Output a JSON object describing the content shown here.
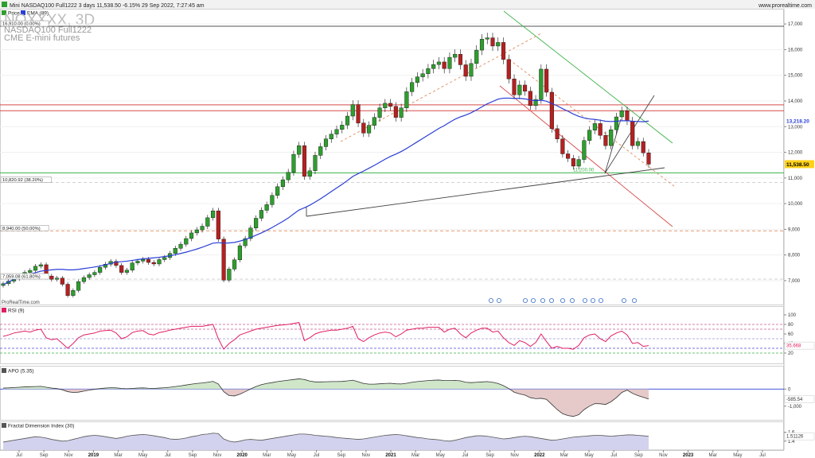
{
  "header": {
    "title": "Mini NASDAQ100 Full1222 3 days 11,538.50 -6.15% 29 Sep 2022, 7:27:45 am",
    "brand": "www.prorealtime.com"
  },
  "legend": {
    "price": "Price",
    "ema": "EMA (89)"
  },
  "watermark": {
    "symbol": "NQXXXX, 3D",
    "name": "NASDAQ100 Full1222",
    "exchange": "CME E-mini futures"
  },
  "copyright": "ProRealTime.com",
  "panels": {
    "rsi": "RSI (9)",
    "apo": "APO (5.35)",
    "fdi": "Fractal Dimension Index (30)"
  },
  "colors": {
    "candle_up": "#2e9e2e",
    "candle_down": "#b52020",
    "ema": "#2a3fd6",
    "rsi": "#e01e63",
    "fdi": "#8a8ad6"
  },
  "chart_data": [
    {
      "type": "candlestick",
      "timeframe": "3 days",
      "last_price_label": "11,538.50",
      "ema_label": "13,218.20",
      "support_label": "11,200.00",
      "ylim": [
        6100,
        17500
      ],
      "y_ticks": [
        "7,000",
        "8,000",
        "9,000",
        "10,000",
        "11,000",
        "12,000",
        "13,000",
        "14,000",
        "15,000",
        "16,000",
        "17,000"
      ],
      "x_ticks": [
        "Jul",
        "Sep",
        "Nov",
        "2019",
        "Mar",
        "May",
        "Jul",
        "Sep",
        "Nov",
        "2020",
        "Mar",
        "May",
        "Jul",
        "Sep",
        "Nov",
        "2021",
        "Mar",
        "May",
        "Jul",
        "Sep",
        "Nov",
        "2022",
        "Mar",
        "May",
        "Jul",
        "Sep",
        "Nov",
        "2023",
        "Mar",
        "May",
        "Jul"
      ],
      "fib_levels": [
        {
          "label": "16,910.00 (0.00%)",
          "value": 16910
        },
        {
          "label": "10,820.92 (38.20%)",
          "value": 10820.92
        },
        {
          "label": "8,940.00 (50.00%)",
          "value": 8940
        },
        {
          "label": "7,059.08 (61.80%)",
          "value": 7059.08
        }
      ],
      "horizontal_levels": [
        13850,
        13620,
        11200
      ],
      "series": [
        {
          "name": "Price",
          "values": [
            6880,
            6980,
            7080,
            7150,
            7320,
            7400,
            7560,
            7620,
            7180,
            7050,
            7100,
            6860,
            6420,
            6620,
            6960,
            7120,
            7230,
            7320,
            7520,
            7640,
            7750,
            7590,
            7320,
            7410,
            7690,
            7760,
            7830,
            7710,
            7650,
            7820,
            7900,
            8060,
            8260,
            8420,
            8640,
            8860,
            8980,
            9120,
            9450,
            9720,
            8620,
            7020,
            7450,
            7810,
            8360,
            8640,
            9050,
            9430,
            9740,
            9960,
            10320,
            10660,
            10930,
            11220,
            11920,
            12260,
            11060,
            11280,
            11880,
            12220,
            12520,
            12710,
            12890,
            13060,
            13410,
            13860,
            13140,
            12750,
            13050,
            13360,
            13730,
            13910,
            13790,
            13360,
            13730,
            14360,
            14720,
            14940,
            15060,
            15260,
            15420,
            15520,
            15260,
            15700,
            15820,
            15410,
            14960,
            15460,
            15980,
            16410,
            16460,
            16140,
            16280,
            15620,
            14860,
            14240,
            14620,
            14380,
            13820,
            14060,
            15240,
            14340,
            12920,
            12520,
            11940,
            11760,
            11460,
            11720,
            12460,
            12860,
            13120,
            12660,
            12260,
            12880,
            13380,
            13620,
            13220,
            12260,
            12420,
            11980,
            11538.5
          ]
        },
        {
          "name": "EMA (89)",
          "values": [
            6850,
            6950,
            7050,
            7120,
            7190,
            7250,
            7310,
            7370,
            7400,
            7420,
            7440,
            7440,
            7420,
            7420,
            7440,
            7470,
            7500,
            7530,
            7570,
            7620,
            7670,
            7720,
            7740,
            7760,
            7790,
            7820,
            7850,
            7870,
            7890,
            7910,
            7940,
            7970,
            8010,
            8060,
            8110,
            8170,
            8230,
            8300,
            8380,
            8460,
            8480,
            8460,
            8470,
            8490,
            8540,
            8600,
            8680,
            8770,
            8860,
            8960,
            9070,
            9190,
            9310,
            9440,
            9600,
            9750,
            9840,
            9940,
            10060,
            10190,
            10330,
            10470,
            10610,
            10750,
            10900,
            11060,
            11170,
            11270,
            11380,
            11490,
            11610,
            11730,
            11840,
            11930,
            12030,
            12150,
            12280,
            12410,
            12540,
            12670,
            12800,
            12930,
            13040,
            13170,
            13290,
            13380,
            13450,
            13540,
            13650,
            13770,
            13890,
            13980,
            14070,
            14110,
            14110,
            14100,
            14100,
            14080,
            14040,
            14010,
            14030,
            13990,
            13900,
            13810,
            13700,
            13600,
            13490,
            13400,
            13340,
            13300,
            13280,
            13250,
            13210,
            13200,
            13210,
            13230,
            13230,
            13210,
            13200,
            13190,
            13218.2
          ]
        }
      ]
    },
    {
      "type": "line",
      "title": "RSI (9)",
      "ylim": [
        0,
        100
      ],
      "y_ticks": [
        "20",
        "40",
        "60",
        "80",
        "100"
      ],
      "last_label": "35.668",
      "reference_levels": [
        80,
        70,
        50,
        30,
        20
      ],
      "series": [
        {
          "name": "RSI (9)",
          "values": [
            55,
            58,
            62,
            64,
            66,
            64,
            68,
            70,
            52,
            48,
            50,
            40,
            30,
            40,
            52,
            58,
            60,
            62,
            66,
            67,
            68,
            62,
            50,
            54,
            63,
            66,
            67,
            60,
            58,
            63,
            65,
            68,
            70,
            72,
            74,
            76,
            76,
            76,
            78,
            80,
            50,
            28,
            40,
            48,
            58,
            62,
            66,
            70,
            72,
            74,
            76,
            78,
            79,
            80,
            82,
            84,
            46,
            52,
            60,
            64,
            66,
            68,
            68,
            70,
            72,
            76,
            50,
            44,
            52,
            58,
            62,
            64,
            62,
            54,
            60,
            68,
            70,
            72,
            72,
            74,
            74,
            74,
            64,
            70,
            72,
            60,
            52,
            62,
            68,
            72,
            72,
            64,
            66,
            52,
            42,
            36,
            46,
            42,
            34,
            42,
            60,
            44,
            30,
            34,
            30,
            30,
            28,
            36,
            52,
            58,
            60,
            50,
            44,
            56,
            62,
            66,
            58,
            40,
            42,
            34,
            35.67
          ]
        }
      ]
    },
    {
      "type": "area",
      "title": "APO (5.35)",
      "ylim": [
        -1800,
        900
      ],
      "y_ticks": [
        "0",
        "-1,000"
      ],
      "last_label": "-585.54",
      "series": [
        {
          "name": "APO (5.35)",
          "values": [
            60,
            70,
            90,
            110,
            130,
            140,
            150,
            160,
            110,
            60,
            30,
            -40,
            -150,
            -200,
            -180,
            -120,
            -60,
            -10,
            30,
            60,
            80,
            70,
            40,
            20,
            40,
            60,
            70,
            50,
            40,
            60,
            80,
            110,
            150,
            190,
            240,
            290,
            330,
            360,
            400,
            450,
            300,
            -150,
            -380,
            -400,
            -300,
            -150,
            10,
            150,
            260,
            330,
            380,
            440,
            480,
            520,
            560,
            600,
            560,
            470,
            420,
            420,
            430,
            440,
            440,
            450,
            480,
            520,
            430,
            330,
            290,
            290,
            310,
            330,
            340,
            310,
            300,
            340,
            400,
            440,
            470,
            500,
            520,
            530,
            500,
            500,
            510,
            480,
            400,
            380,
            400,
            420,
            440,
            400,
            330,
            200,
            30,
            -180,
            -280,
            -350,
            -500,
            -560,
            -540,
            -600,
            -900,
            -1200,
            -1440,
            -1550,
            -1600,
            -1500,
            -1200,
            -1000,
            -850,
            -860,
            -900,
            -740,
            -500,
            -200,
            -60,
            -250,
            -380,
            -480,
            -585.54
          ]
        }
      ]
    },
    {
      "type": "area",
      "title": "Fractal Dimension Index (30)",
      "ylim": [
        1.2,
        1.7
      ],
      "y_ticks": [
        "1.4",
        "1.6"
      ],
      "last_label": "1.51126",
      "series": [
        {
          "name": "Fractal Dimension Index (30)",
          "values": [
            1.38,
            1.4,
            1.42,
            1.44,
            1.46,
            1.48,
            1.5,
            1.49,
            1.47,
            1.44,
            1.42,
            1.4,
            1.41,
            1.44,
            1.47,
            1.5,
            1.52,
            1.53,
            1.52,
            1.5,
            1.48,
            1.46,
            1.48,
            1.51,
            1.53,
            1.54,
            1.55,
            1.54,
            1.52,
            1.5,
            1.48,
            1.45,
            1.44,
            1.45,
            1.47,
            1.5,
            1.52,
            1.55,
            1.56,
            1.58,
            1.57,
            1.45,
            1.4,
            1.38,
            1.4,
            1.43,
            1.44,
            1.43,
            1.42,
            1.44,
            1.46,
            1.48,
            1.5,
            1.52,
            1.54,
            1.56,
            1.56,
            1.55,
            1.53,
            1.52,
            1.51,
            1.5,
            1.48,
            1.47,
            1.46,
            1.45,
            1.44,
            1.45,
            1.47,
            1.49,
            1.51,
            1.53,
            1.54,
            1.55,
            1.54,
            1.52,
            1.5,
            1.48,
            1.47,
            1.45,
            1.44,
            1.43,
            1.41,
            1.4,
            1.42,
            1.45,
            1.48,
            1.5,
            1.52,
            1.52,
            1.51,
            1.49,
            1.47,
            1.45,
            1.46,
            1.48,
            1.5,
            1.51,
            1.5,
            1.48,
            1.46,
            1.44,
            1.42,
            1.43,
            1.45,
            1.47,
            1.49,
            1.5,
            1.51,
            1.52,
            1.53,
            1.53,
            1.52,
            1.51,
            1.52,
            1.53,
            1.54,
            1.54,
            1.53,
            1.52,
            1.51
          ]
        }
      ]
    }
  ]
}
